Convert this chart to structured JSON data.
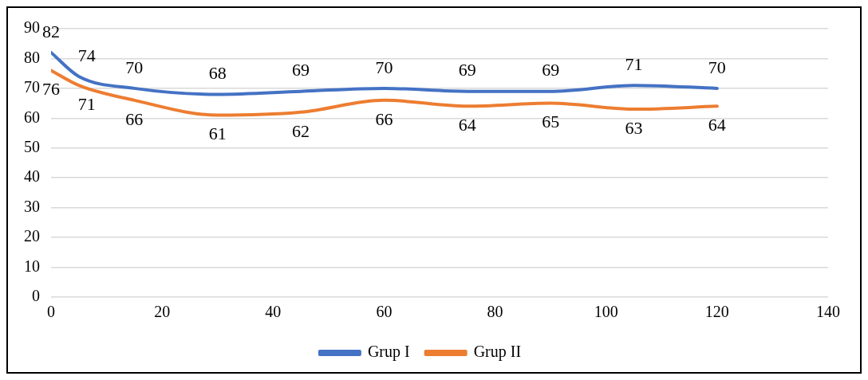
{
  "chart_data": {
    "type": "line",
    "x": [
      0,
      5,
      15,
      30,
      45,
      60,
      75,
      90,
      105,
      120
    ],
    "series": [
      {
        "name": "Grup I",
        "color": "#4472c4",
        "values": [
          82,
          74,
          70,
          68,
          69,
          70,
          69,
          69,
          71,
          70
        ]
      },
      {
        "name": "Grup II",
        "color": "#ed7d31",
        "values": [
          76,
          71,
          66,
          61,
          62,
          66,
          64,
          65,
          63,
          64
        ]
      }
    ],
    "xlim": [
      0,
      140
    ],
    "xticks": [
      0,
      20,
      40,
      60,
      80,
      100,
      120,
      140
    ],
    "ylim": [
      0,
      90
    ],
    "yticks": [
      0,
      10,
      20,
      30,
      40,
      50,
      60,
      70,
      80,
      90
    ],
    "grid": "y",
    "legend": "bottom",
    "data_labels": true,
    "marker": "none",
    "line_style": "solid"
  }
}
